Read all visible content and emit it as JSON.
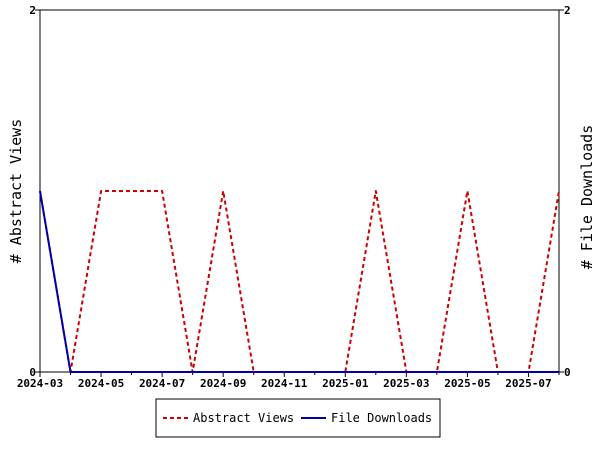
{
  "chart_data": {
    "type": "line",
    "x": [
      "2024-03",
      "2024-04",
      "2024-05",
      "2024-06",
      "2024-07",
      "2024-08",
      "2024-09",
      "2024-10",
      "2024-11",
      "2024-12",
      "2025-01",
      "2025-02",
      "2025-03",
      "2025-04",
      "2025-05",
      "2025-06",
      "2025-07",
      "2025-08"
    ],
    "x_ticks": [
      "2024-03",
      "2024-05",
      "2024-07",
      "2024-09",
      "2024-11",
      "2025-01",
      "2025-03",
      "2025-05",
      "2025-07"
    ],
    "series": [
      {
        "name": "Abstract Views",
        "values": [
          1,
          0,
          1,
          1,
          1,
          0,
          1,
          0,
          0,
          0,
          0,
          1,
          0,
          0,
          1,
          0,
          0,
          1
        ],
        "axis": "left",
        "color": "#cc0000",
        "style": "dashed"
      },
      {
        "name": "File Downloads",
        "values": [
          1,
          0,
          0,
          0,
          0,
          0,
          0,
          0,
          0,
          0,
          0,
          0,
          0,
          0,
          0,
          0,
          0,
          0
        ],
        "axis": "right",
        "color": "#0000aa",
        "style": "solid"
      }
    ],
    "ylabel": "# Abstract Views",
    "y2label": "# File Downloads",
    "ylim": [
      0,
      2
    ],
    "y2lim": [
      0,
      2
    ],
    "yticks": [
      "0",
      "2"
    ],
    "y2ticks": [
      "0",
      "2"
    ],
    "grid": false,
    "legend": "bottom"
  }
}
